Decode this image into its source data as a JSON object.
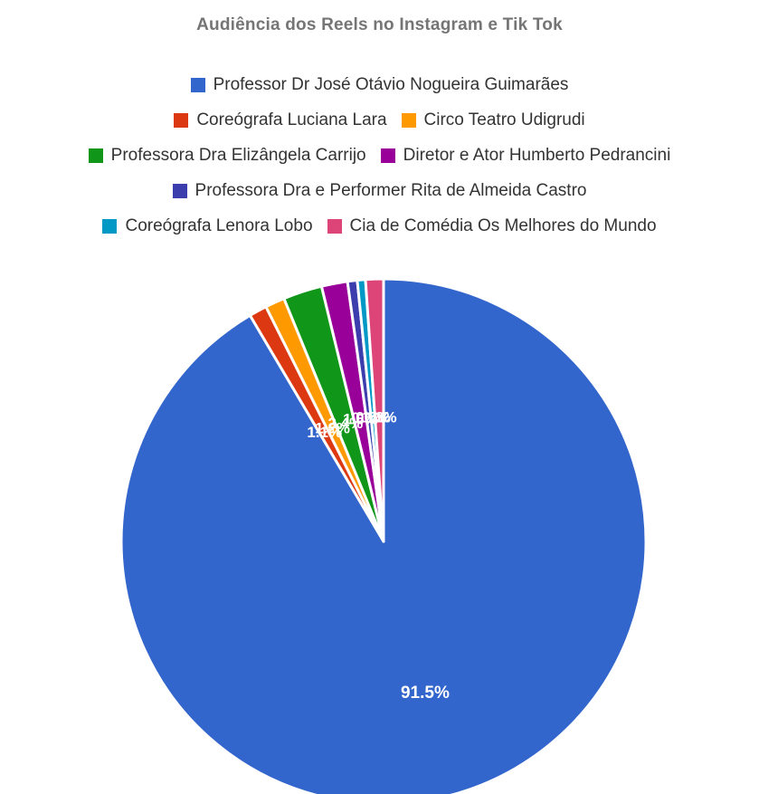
{
  "chart_data": {
    "type": "pie",
    "title": "Audiência dos Reels no Instagram e Tik Tok",
    "legend_position": "top",
    "start_angle_deg": -90,
    "slices": [
      {
        "label": "Professor Dr José Otávio Nogueira Guimarães",
        "value": 91.5,
        "color": "#3366cc",
        "data_label": "91.5%"
      },
      {
        "label": "Coreógrafa Luciana Lara",
        "value": 1.1,
        "color": "#dc3912",
        "data_label": "1.1%"
      },
      {
        "label": "Circo Teatro Udigrudi",
        "value": 1.2,
        "color": "#ff9900",
        "data_label": "1.2%"
      },
      {
        "label": "Professora Dra Elizângela Carrijo",
        "value": 2.4,
        "color": "#109618",
        "data_label": "2.4%"
      },
      {
        "label": "Diretor e Ator Humberto Pedrancini",
        "value": 1.6,
        "color": "#990099",
        "data_label": "1.6%"
      },
      {
        "label": "Professora Dra e Performer Rita de Almeida Castro",
        "value": 0.6,
        "color": "#3b3eac",
        "data_label": "0.6%"
      },
      {
        "label": "Coreógrafa Lenora Lobo",
        "value": 0.5,
        "color": "#0099c6",
        "data_label": "0.5%"
      },
      {
        "label": "Cia de Comédia Os Melhores do Mundo",
        "value": 1.1,
        "color": "#dd4477",
        "data_label": "1.1%"
      }
    ],
    "legend_rows": [
      [
        0
      ],
      [
        1,
        2
      ],
      [
        3,
        4
      ],
      [
        5
      ],
      [
        6,
        7
      ]
    ]
  }
}
